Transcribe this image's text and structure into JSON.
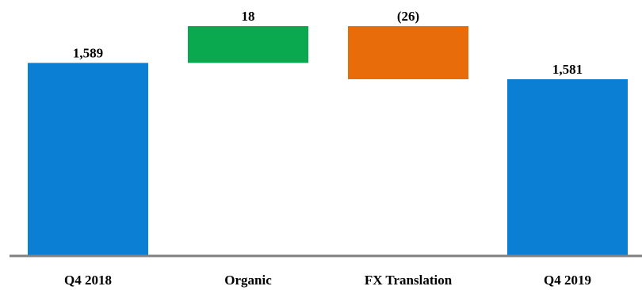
{
  "chart_data": {
    "type": "bar",
    "subtype": "waterfall",
    "title": "",
    "xlabel": "",
    "ylabel": "",
    "categories": [
      "Q4 2018",
      "Organic",
      "FX Translation",
      "Q4 2019"
    ],
    "bars": [
      {
        "category": "Q4 2018",
        "kind": "total",
        "start": 0,
        "end": 1589,
        "value": 1589,
        "label": "1,589",
        "color": "#0a7fd4"
      },
      {
        "category": "Organic",
        "kind": "delta",
        "start": 1589,
        "end": 1607,
        "value": 18,
        "label": "18",
        "color": "#0aa84f"
      },
      {
        "category": "FX Translation",
        "kind": "delta",
        "start": 1607,
        "end": 1581,
        "value": -26,
        "label": "(26)",
        "color": "#e86c0a"
      },
      {
        "category": "Q4 2019",
        "kind": "total",
        "start": 0,
        "end": 1581,
        "value": 1581,
        "label": "1,581",
        "color": "#0a7fd4"
      }
    ],
    "axis_color": "#808080",
    "grid": false,
    "legend": "none"
  }
}
